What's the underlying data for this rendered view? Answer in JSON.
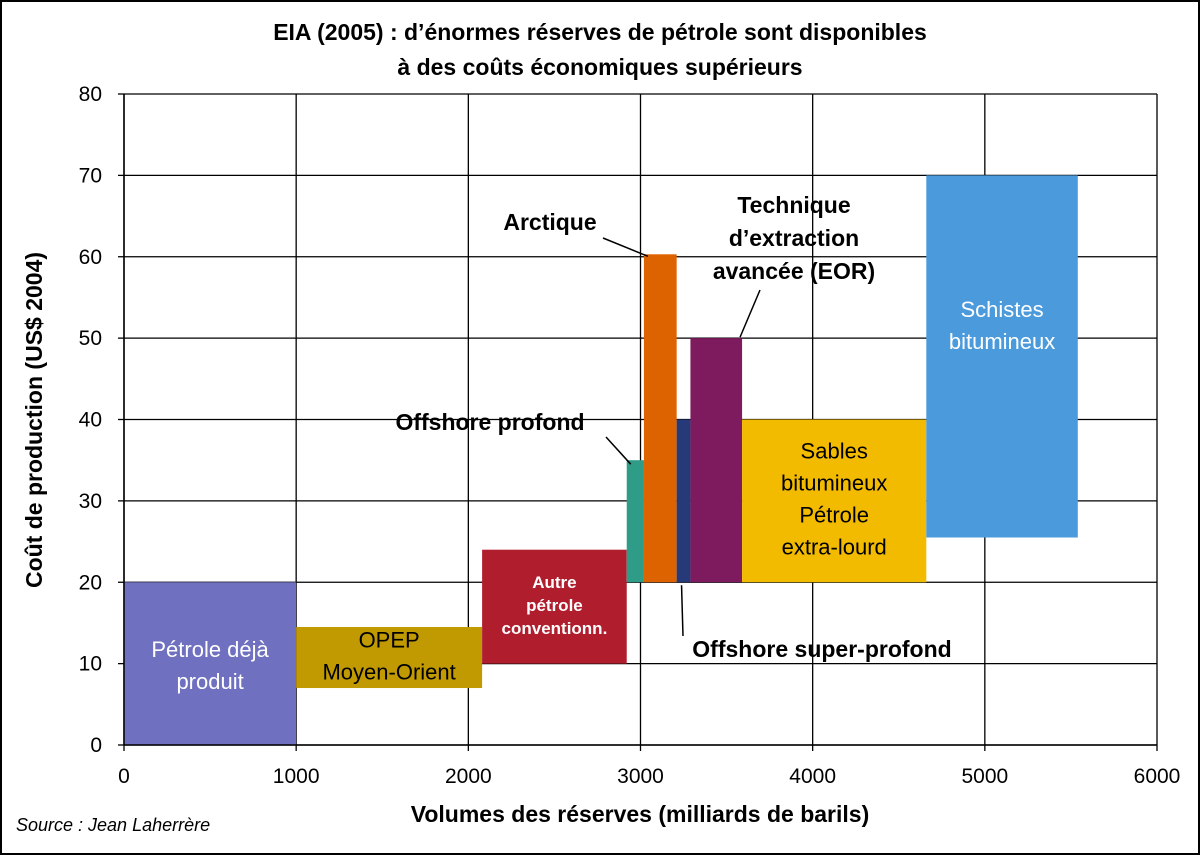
{
  "chart_data": {
    "type": "bar",
    "title": [
      "EIA (2005) : d’énormes réserves de pétrole sont disponibles",
      "à des coûts économiques supérieurs"
    ],
    "xlabel": "Volumes des réserves (milliards de barils)",
    "ylabel": "Coût de production (US$ 2004)",
    "xlim": [
      0,
      6000
    ],
    "ylim": [
      0,
      80
    ],
    "xticks": [
      0,
      1000,
      2000,
      3000,
      4000,
      5000,
      6000
    ],
    "yticks": [
      0,
      10,
      20,
      30,
      40,
      50,
      60,
      70,
      80
    ],
    "grid": true,
    "source": "Source : Jean Laherrère",
    "blocks": [
      {
        "name": "Pétrole déjà produit",
        "lines": [
          "Pétrole déjà",
          "produit"
        ],
        "x0": 0,
        "x1": 1000,
        "y0": 0,
        "y1": 20,
        "color": "#7070C0",
        "label_color": "#ffffff",
        "label_style": "normal",
        "label_pos": "inside-bottom"
      },
      {
        "name": "OPEP Moyen-Orient",
        "lines": [
          "OPEP",
          "Moyen-Orient"
        ],
        "x0": 1000,
        "x1": 2080,
        "y0": 7,
        "y1": 14.5,
        "color": "#C09A00",
        "label_color": "#000000",
        "label_style": "normal",
        "label_pos": "inside"
      },
      {
        "name": "Autre pétrole conventionn.",
        "lines": [
          "Autre",
          "pétrole",
          "conventionn."
        ],
        "x0": 2080,
        "x1": 2920,
        "y0": 10,
        "y1": 24,
        "color": "#B01E2E",
        "label_color": "#ffffff",
        "label_style": "bold",
        "label_pos": "inside"
      },
      {
        "name": "Offshore profond",
        "lines": [
          "Offshore profond"
        ],
        "x0": 2920,
        "x1": 3020,
        "y0": 20,
        "y1": 35,
        "color": "#2E9C86",
        "label_pos": "callout"
      },
      {
        "name": "Arctique",
        "lines": [
          "Arctique"
        ],
        "x0": 3020,
        "x1": 3210,
        "y0": 20,
        "y1": 60.3,
        "color": "#DD6200",
        "label_pos": "callout"
      },
      {
        "name": "Offshore super-profond",
        "lines": [
          "Offshore super-profond"
        ],
        "x0": 3210,
        "x1": 3290,
        "y0": 20,
        "y1": 40,
        "color": "#263A7A",
        "label_pos": "callout"
      },
      {
        "name": "Technique d’extraction avancée (EOR)",
        "lines": [
          "Technique",
          "d’extraction",
          "avancée (EOR)"
        ],
        "x0": 3290,
        "x1": 3590,
        "y0": 20,
        "y1": 50,
        "color": "#7E1A5E",
        "label_pos": "callout"
      },
      {
        "name": "Sables bitumineux Pétrole extra-lourd",
        "lines": [
          "Sables",
          "bitumineux",
          "Pétrole",
          "extra-lourd"
        ],
        "x0": 3590,
        "x1": 4660,
        "y0": 20,
        "y1": 40,
        "color": "#F2BB00",
        "label_color": "#000000",
        "label_style": "normal",
        "label_pos": "inside"
      },
      {
        "name": "Schistes bitumineux",
        "lines": [
          "Schistes",
          "bitumineux"
        ],
        "x0": 4660,
        "x1": 5540,
        "y0": 25.5,
        "y1": 70,
        "color": "#4A9ADC",
        "label_color": "#ffffff",
        "label_style": "normal",
        "label_pos": "inside-top"
      }
    ]
  }
}
